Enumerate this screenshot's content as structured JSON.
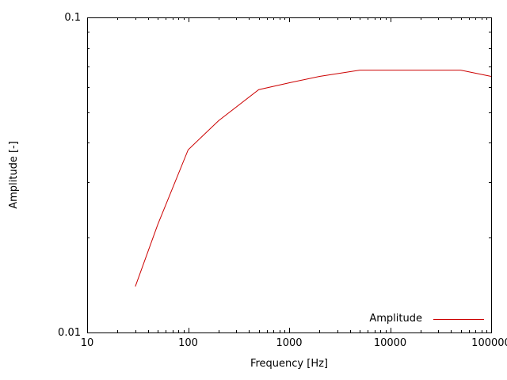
{
  "figure": {
    "background_color": "#ffffff",
    "axis_color": "#000000"
  },
  "chart_data": {
    "type": "line",
    "title": "",
    "xlabel": "Frequency [Hz]",
    "ylabel": "Amplitude [-]",
    "x_scale": "log",
    "y_scale": "log",
    "xlim": [
      10,
      100000
    ],
    "ylim": [
      0.01,
      0.1
    ],
    "grid": "off",
    "x_ticks": [
      10,
      100,
      1000,
      10000,
      100000
    ],
    "x_tick_labels": [
      "10",
      "100",
      "1000",
      "10000",
      "100000"
    ],
    "y_ticks": [
      0.01,
      0.1
    ],
    "y_tick_labels": [
      "0.01",
      "0.1"
    ],
    "legend": {
      "position": "bottom-right-inside",
      "entries": [
        "Amplitude"
      ]
    },
    "series": [
      {
        "name": "Amplitude",
        "color": "#cc0000",
        "x": [
          30,
          50,
          100,
          200,
          500,
          1000,
          2000,
          5000,
          10000,
          20000,
          50000,
          100000
        ],
        "y": [
          0.014,
          0.022,
          0.038,
          0.047,
          0.059,
          0.062,
          0.065,
          0.068,
          0.068,
          0.068,
          0.068,
          0.065
        ]
      }
    ]
  }
}
